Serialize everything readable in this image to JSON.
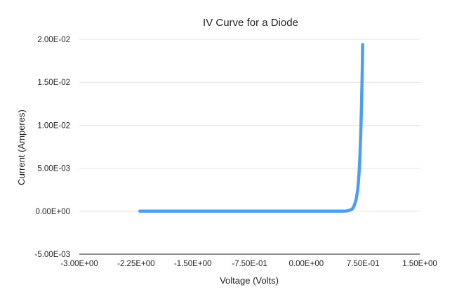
{
  "chart_data": {
    "type": "line",
    "title": "IV Curve for a Diode",
    "xlabel": "Voltage (Volts)",
    "ylabel": "Current (Amperes)",
    "xlim": [
      -3.0,
      1.5
    ],
    "ylim": [
      -0.005,
      0.02
    ],
    "x_ticks": [
      -3.0,
      -2.25,
      -1.5,
      -0.75,
      0.0,
      0.75,
      1.5
    ],
    "x_tick_labels": [
      "-3.00E+00",
      "-2.25E+00",
      "-1.50E+00",
      "-7.50E-01",
      "0.00E+00",
      "7.50E-01",
      "1.50E+00"
    ],
    "y_ticks": [
      -0.005,
      0.0,
      0.005,
      0.01,
      0.015,
      0.02
    ],
    "y_tick_labels": [
      "-5.00E-03",
      "0.00E+00",
      "5.00E-03",
      "1.00E-02",
      "1.50E-02",
      "2.00E-02"
    ],
    "grid": true,
    "legend": "none",
    "series": [
      {
        "color": "#4a9ff0",
        "x": [
          -2.2,
          -1.5,
          -0.75,
          0.0,
          0.3,
          0.5,
          0.55,
          0.6,
          0.62,
          0.64,
          0.66,
          0.68,
          0.69,
          0.7,
          0.71,
          0.72,
          0.73,
          0.74,
          0.745
        ],
        "y": [
          0.0,
          0.0,
          0.0,
          0.0,
          0.0,
          0.0,
          5e-05,
          0.0002,
          0.0004,
          0.0008,
          0.0014,
          0.0025,
          0.0035,
          0.0048,
          0.0066,
          0.009,
          0.0122,
          0.0163,
          0.0194
        ]
      }
    ]
  }
}
